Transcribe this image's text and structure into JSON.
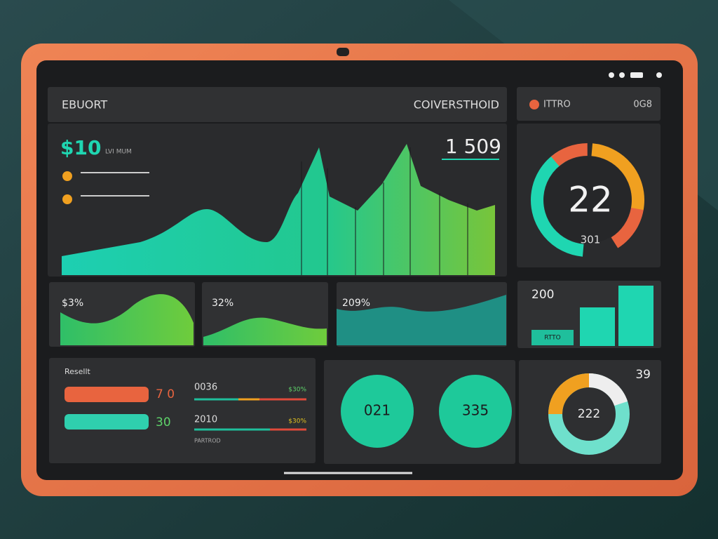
{
  "header": {
    "title": "EBUORT",
    "subtitle": "COIVERSTHOID",
    "tab": "ITTRO",
    "code": "0G8"
  },
  "main_chart": {
    "value": "$10",
    "unit": "LVI MUM",
    "total": "1 509"
  },
  "gauge": {
    "value": "22",
    "label": "301"
  },
  "cards": [
    {
      "value": "$3%"
    },
    {
      "value": "32%"
    },
    {
      "value": "209%"
    },
    {
      "value": "200",
      "button": "RTTO"
    }
  ],
  "report": {
    "title": "Resellt",
    "rows": [
      {
        "value": "7 0"
      },
      {
        "value": "30"
      }
    ],
    "stats": [
      {
        "label": "0036",
        "value": "$30%"
      },
      {
        "label": "2010",
        "value": "$30%"
      }
    ],
    "footer": "PARTROD"
  },
  "circles": [
    "021",
    "335"
  ],
  "donut": {
    "value": "222",
    "label": "39"
  }
}
